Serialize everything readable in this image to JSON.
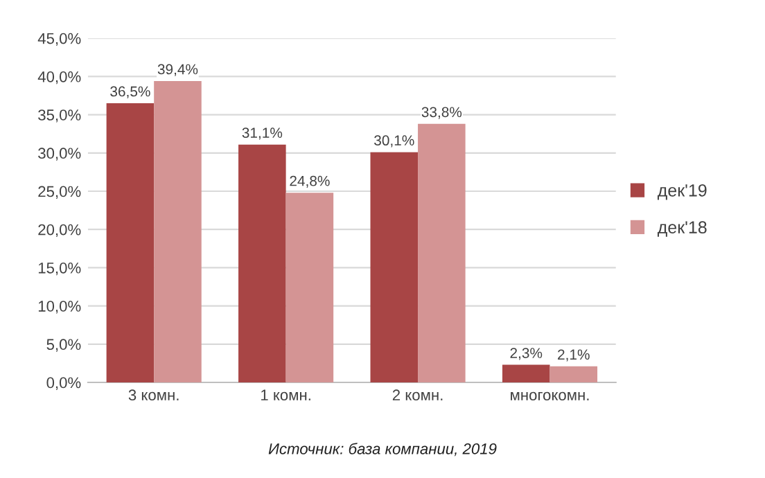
{
  "chart_data": {
    "type": "bar",
    "categories": [
      "3 комн.",
      "1 комн.",
      "2 комн.",
      "многокомн."
    ],
    "series": [
      {
        "name": "дек'19",
        "color": "#a84545",
        "values": [
          36.5,
          31.1,
          30.1,
          2.3
        ],
        "value_labels": [
          "36,5%",
          "31,1%",
          "30,1%",
          "2,3%"
        ]
      },
      {
        "name": "дек'18",
        "color": "#d49494",
        "values": [
          39.4,
          24.8,
          33.8,
          2.1
        ],
        "value_labels": [
          "39,4%",
          "24,8%",
          "33,8%",
          "2,1%"
        ]
      }
    ],
    "ylim": [
      0,
      45
    ],
    "yticks": [
      {
        "value": 0,
        "label": "0,0%"
      },
      {
        "value": 5,
        "label": "5,0%"
      },
      {
        "value": 10,
        "label": "10,0%"
      },
      {
        "value": 15,
        "label": "15,0%"
      },
      {
        "value": 20,
        "label": "20,0%"
      },
      {
        "value": 25,
        "label": "25,0%"
      },
      {
        "value": 30,
        "label": "30,0%"
      },
      {
        "value": 35,
        "label": "35,0%"
      },
      {
        "value": 40,
        "label": "40,0%"
      },
      {
        "value": 45,
        "label": "45,0%"
      }
    ],
    "grid": "y",
    "legend": "right",
    "annotations": [
      "Источник: база компании, 2019"
    ]
  }
}
